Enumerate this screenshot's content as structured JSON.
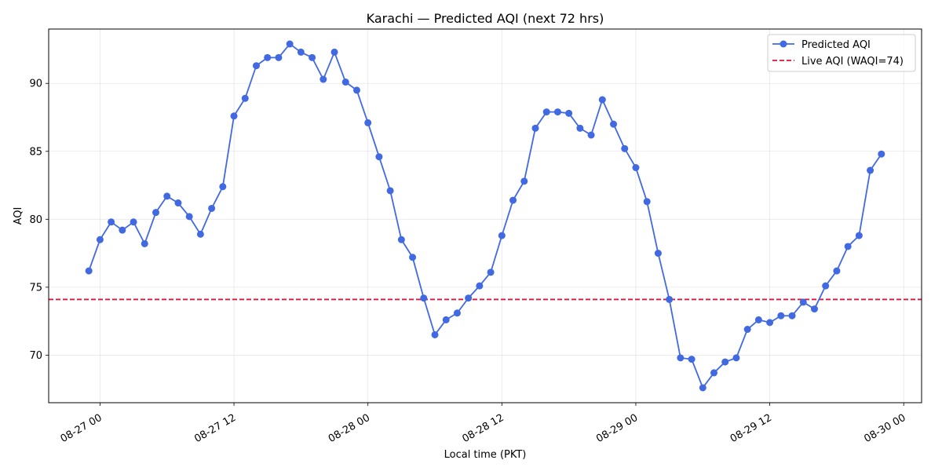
{
  "chart_data": {
    "type": "line",
    "title": "Karachi — Predicted AQI (next 72 hrs)",
    "xlabel": "Local time (PKT)",
    "ylabel": "AQI",
    "x_tick_labels": [
      "08-27 00",
      "08-27 12",
      "08-28 00",
      "08-28 12",
      "08-29 00",
      "08-29 12",
      "08-30 00"
    ],
    "y_ticks": [
      70,
      75,
      80,
      85,
      90
    ],
    "xlim": [
      "2025-08-26 19:24",
      "2025-08-30 01:36"
    ],
    "ylim": [
      66.5,
      94.0
    ],
    "grid": true,
    "legend_position": "top-right",
    "reference_line": {
      "label": "Live AQI (WAQI=74)",
      "value": 74.1,
      "color": "#dc143c",
      "style": "dashed"
    },
    "series": [
      {
        "name": "Predicted AQI",
        "color": "#4169e1",
        "marker": "circle",
        "x": [
          "2025-08-26 23:00",
          "2025-08-27 00:00",
          "2025-08-27 01:00",
          "2025-08-27 02:00",
          "2025-08-27 03:00",
          "2025-08-27 04:00",
          "2025-08-27 05:00",
          "2025-08-27 06:00",
          "2025-08-27 07:00",
          "2025-08-27 08:00",
          "2025-08-27 09:00",
          "2025-08-27 10:00",
          "2025-08-27 11:00",
          "2025-08-27 12:00",
          "2025-08-27 13:00",
          "2025-08-27 14:00",
          "2025-08-27 15:00",
          "2025-08-27 16:00",
          "2025-08-27 17:00",
          "2025-08-27 18:00",
          "2025-08-27 19:00",
          "2025-08-27 20:00",
          "2025-08-27 21:00",
          "2025-08-27 22:00",
          "2025-08-27 23:00",
          "2025-08-28 00:00",
          "2025-08-28 01:00",
          "2025-08-28 02:00",
          "2025-08-28 03:00",
          "2025-08-28 04:00",
          "2025-08-28 05:00",
          "2025-08-28 06:00",
          "2025-08-28 07:00",
          "2025-08-28 08:00",
          "2025-08-28 09:00",
          "2025-08-28 10:00",
          "2025-08-28 11:00",
          "2025-08-28 12:00",
          "2025-08-28 13:00",
          "2025-08-28 14:00",
          "2025-08-28 15:00",
          "2025-08-28 16:00",
          "2025-08-28 17:00",
          "2025-08-28 18:00",
          "2025-08-28 19:00",
          "2025-08-28 20:00",
          "2025-08-28 21:00",
          "2025-08-28 22:00",
          "2025-08-28 23:00",
          "2025-08-29 00:00",
          "2025-08-29 01:00",
          "2025-08-29 02:00",
          "2025-08-29 03:00",
          "2025-08-29 04:00",
          "2025-08-29 05:00",
          "2025-08-29 06:00",
          "2025-08-29 07:00",
          "2025-08-29 08:00",
          "2025-08-29 09:00",
          "2025-08-29 10:00",
          "2025-08-29 11:00",
          "2025-08-29 12:00",
          "2025-08-29 13:00",
          "2025-08-29 14:00",
          "2025-08-29 15:00",
          "2025-08-29 16:00",
          "2025-08-29 17:00",
          "2025-08-29 18:00",
          "2025-08-29 19:00",
          "2025-08-29 20:00",
          "2025-08-29 21:00",
          "2025-08-29 22:00"
        ],
        "values": [
          76.2,
          78.5,
          79.8,
          79.2,
          79.8,
          78.2,
          80.5,
          81.7,
          81.2,
          80.2,
          78.9,
          80.8,
          82.4,
          87.6,
          88.9,
          91.3,
          91.9,
          91.9,
          92.9,
          92.3,
          91.9,
          90.3,
          92.3,
          90.1,
          89.5,
          87.1,
          84.6,
          82.1,
          78.5,
          77.2,
          74.2,
          71.5,
          72.6,
          73.1,
          74.2,
          75.1,
          76.1,
          78.8,
          81.4,
          82.8,
          86.7,
          87.9,
          87.9,
          87.8,
          86.7,
          86.2,
          88.8,
          87.0,
          85.2,
          83.8,
          81.3,
          77.5,
          74.1,
          69.8,
          69.7,
          67.6,
          68.7,
          69.5,
          69.8,
          71.9,
          72.6,
          72.4,
          72.9,
          72.9,
          73.9,
          73.4,
          75.1,
          76.2,
          78.0,
          78.8,
          83.6,
          84.8
        ]
      }
    ]
  }
}
